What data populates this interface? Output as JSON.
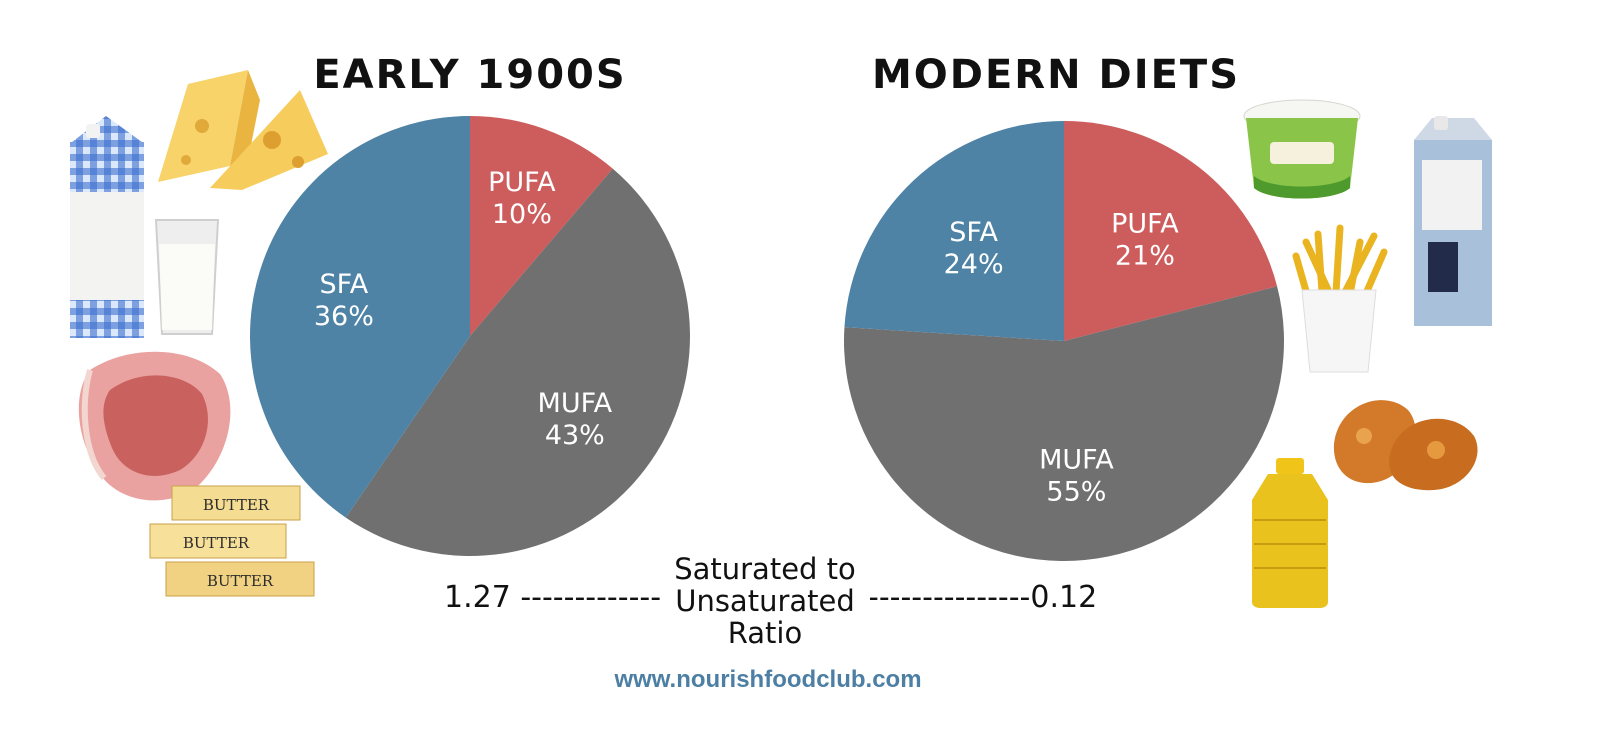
{
  "site_url": "www.nourishfoodclub.com",
  "ratio": {
    "label": "Saturated to Unsaturated Ratio",
    "left_value_text": "1.27 --------------",
    "right_value_text": "---------------0.12"
  },
  "colors": {
    "SFA": "#4e83a6",
    "PUFA": "#cd5c5c",
    "MUFA": "#707070"
  },
  "food_images": {
    "left": [
      "milk-carton",
      "cheese",
      "glass-of-milk",
      "pork-chop",
      "butter-sticks"
    ],
    "right": [
      "margarine-tub",
      "oat-milk-carton",
      "french-fries",
      "fried-chicken",
      "cooking-oil-bottle"
    ]
  },
  "chart_data": [
    {
      "type": "pie",
      "title": "EARLY 1900S",
      "slices": [
        {
          "label": "PUFA",
          "value": 10,
          "value_label": "10%"
        },
        {
          "label": "MUFA",
          "value": 43,
          "value_label": "43%"
        },
        {
          "label": "SFA",
          "value": 36,
          "value_label": "36%"
        }
      ]
    },
    {
      "type": "pie",
      "title": "MODERN DIETS",
      "slices": [
        {
          "label": "PUFA",
          "value": 21,
          "value_label": "21%"
        },
        {
          "label": "MUFA",
          "value": 55,
          "value_label": "55%"
        },
        {
          "label": "SFA",
          "value": 24,
          "value_label": "24%"
        }
      ]
    }
  ]
}
